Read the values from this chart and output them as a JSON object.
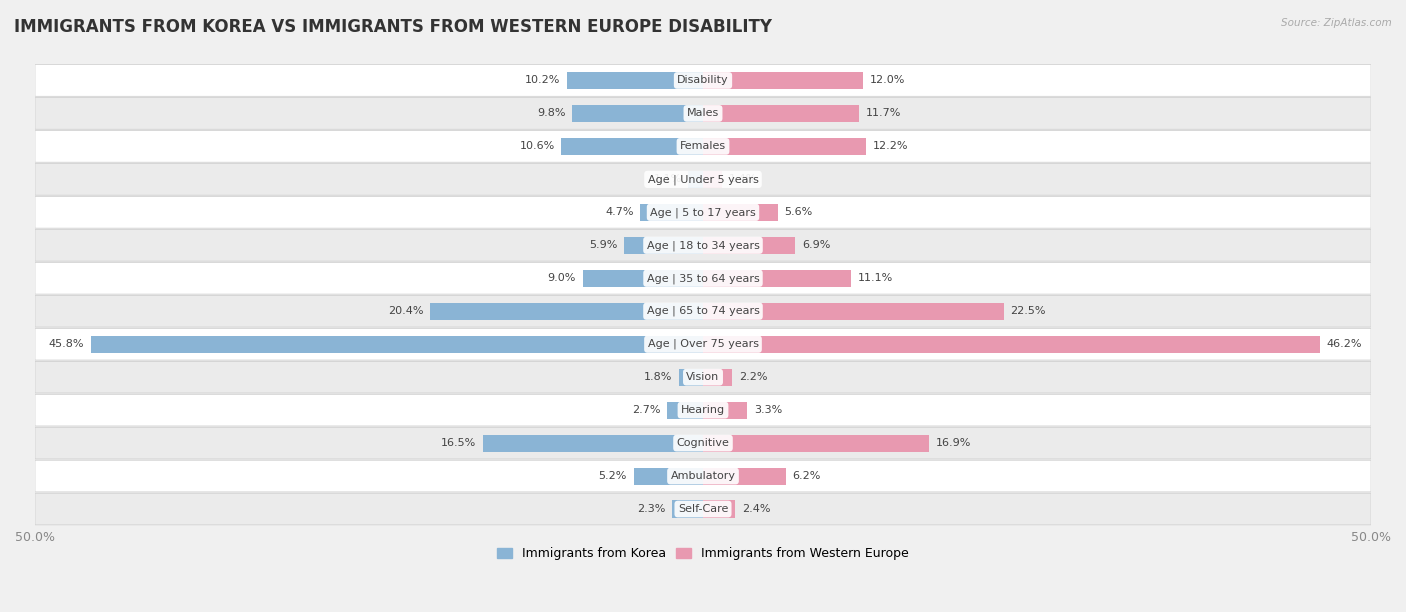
{
  "title": "IMMIGRANTS FROM KOREA VS IMMIGRANTS FROM WESTERN EUROPE DISABILITY",
  "source": "Source: ZipAtlas.com",
  "categories": [
    "Disability",
    "Males",
    "Females",
    "Age | Under 5 years",
    "Age | 5 to 17 years",
    "Age | 18 to 34 years",
    "Age | 35 to 64 years",
    "Age | 65 to 74 years",
    "Age | Over 75 years",
    "Vision",
    "Hearing",
    "Cognitive",
    "Ambulatory",
    "Self-Care"
  ],
  "korea_values": [
    10.2,
    9.8,
    10.6,
    1.1,
    4.7,
    5.9,
    9.0,
    20.4,
    45.8,
    1.8,
    2.7,
    16.5,
    5.2,
    2.3
  ],
  "western_europe_values": [
    12.0,
    11.7,
    12.2,
    1.4,
    5.6,
    6.9,
    11.1,
    22.5,
    46.2,
    2.2,
    3.3,
    16.9,
    6.2,
    2.4
  ],
  "korea_color": "#8ab4d5",
  "western_europe_color": "#e899b0",
  "bar_height": 0.52,
  "x_max": 50.0,
  "x_min": -50.0,
  "background_color": "#f0f0f0",
  "row_color_even": "#ffffff",
  "row_color_odd": "#ebebeb",
  "title_fontsize": 12,
  "label_fontsize": 8,
  "value_fontsize": 8,
  "legend_fontsize": 9
}
